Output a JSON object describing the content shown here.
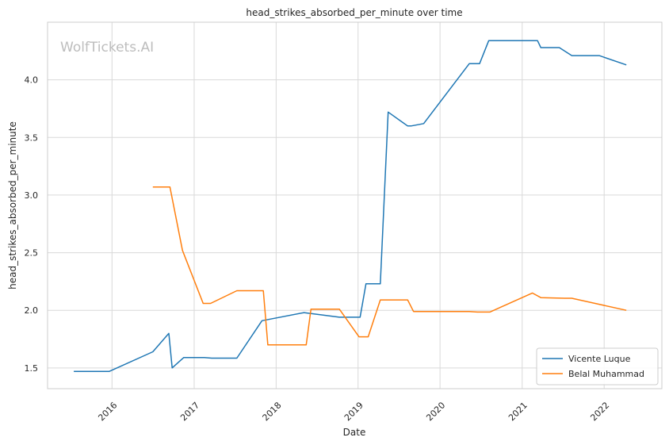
{
  "chart_data": {
    "type": "line",
    "title": "head_strikes_absorbed_per_minute over time",
    "xlabel": "Date",
    "ylabel": "head_strikes_absorbed_per_minute",
    "watermark": "WolfTickets.AI",
    "xlim": [
      "2015-03-20",
      "2022-09-15"
    ],
    "ylim": [
      1.32,
      4.5
    ],
    "x_ticks": [
      "2016",
      "2017",
      "2018",
      "2019",
      "2020",
      "2021",
      "2022"
    ],
    "y_ticks": [
      "1.5",
      "2.0",
      "2.5",
      "3.0",
      "3.5",
      "4.0"
    ],
    "grid": true,
    "legend_position": "bottom-right",
    "series": [
      {
        "name": "Vicente Luque",
        "color": "#1f77b4",
        "points": [
          [
            "2015-07-15",
            1.47
          ],
          [
            "2015-12-20",
            1.47
          ],
          [
            "2016-07-01",
            1.64
          ],
          [
            "2016-09-10",
            1.8
          ],
          [
            "2016-09-25",
            1.5
          ],
          [
            "2016-11-15",
            1.59
          ],
          [
            "2017-02-15",
            1.59
          ],
          [
            "2017-03-20",
            1.585
          ],
          [
            "2017-07-10",
            1.585
          ],
          [
            "2017-10-30",
            1.91
          ],
          [
            "2018-05-05",
            1.98
          ],
          [
            "2018-10-10",
            1.94
          ],
          [
            "2019-01-10",
            1.94
          ],
          [
            "2019-02-05",
            2.23
          ],
          [
            "2019-04-10",
            2.23
          ],
          [
            "2019-05-15",
            3.72
          ],
          [
            "2019-08-10",
            3.6
          ],
          [
            "2019-08-25",
            3.6
          ],
          [
            "2019-10-20",
            3.62
          ],
          [
            "2020-05-10",
            4.14
          ],
          [
            "2020-06-25",
            4.14
          ],
          [
            "2020-08-05",
            4.34
          ],
          [
            "2021-03-10",
            4.34
          ],
          [
            "2021-03-25",
            4.28
          ],
          [
            "2021-06-15",
            4.28
          ],
          [
            "2021-08-10",
            4.21
          ],
          [
            "2021-12-10",
            4.21
          ],
          [
            "2022-04-10",
            4.13
          ]
        ]
      },
      {
        "name": "Belal Muhammad",
        "color": "#ff7f0e",
        "points": [
          [
            "2016-07-01",
            3.07
          ],
          [
            "2016-09-15",
            3.07
          ],
          [
            "2016-11-10",
            2.52
          ],
          [
            "2017-02-10",
            2.06
          ],
          [
            "2017-03-15",
            2.06
          ],
          [
            "2017-07-10",
            2.17
          ],
          [
            "2017-11-05",
            2.17
          ],
          [
            "2017-11-25",
            1.7
          ],
          [
            "2018-05-15",
            1.7
          ],
          [
            "2018-06-05",
            2.01
          ],
          [
            "2018-10-10",
            2.01
          ],
          [
            "2019-01-05",
            1.77
          ],
          [
            "2019-02-15",
            1.77
          ],
          [
            "2019-04-10",
            2.09
          ],
          [
            "2019-08-10",
            2.09
          ],
          [
            "2019-09-05",
            1.99
          ],
          [
            "2020-05-10",
            1.99
          ],
          [
            "2020-06-15",
            1.985
          ],
          [
            "2020-08-10",
            1.985
          ],
          [
            "2021-02-15",
            2.15
          ],
          [
            "2021-03-25",
            2.11
          ],
          [
            "2021-07-10",
            2.105
          ],
          [
            "2021-08-10",
            2.105
          ],
          [
            "2022-04-10",
            2.0
          ]
        ]
      }
    ]
  }
}
